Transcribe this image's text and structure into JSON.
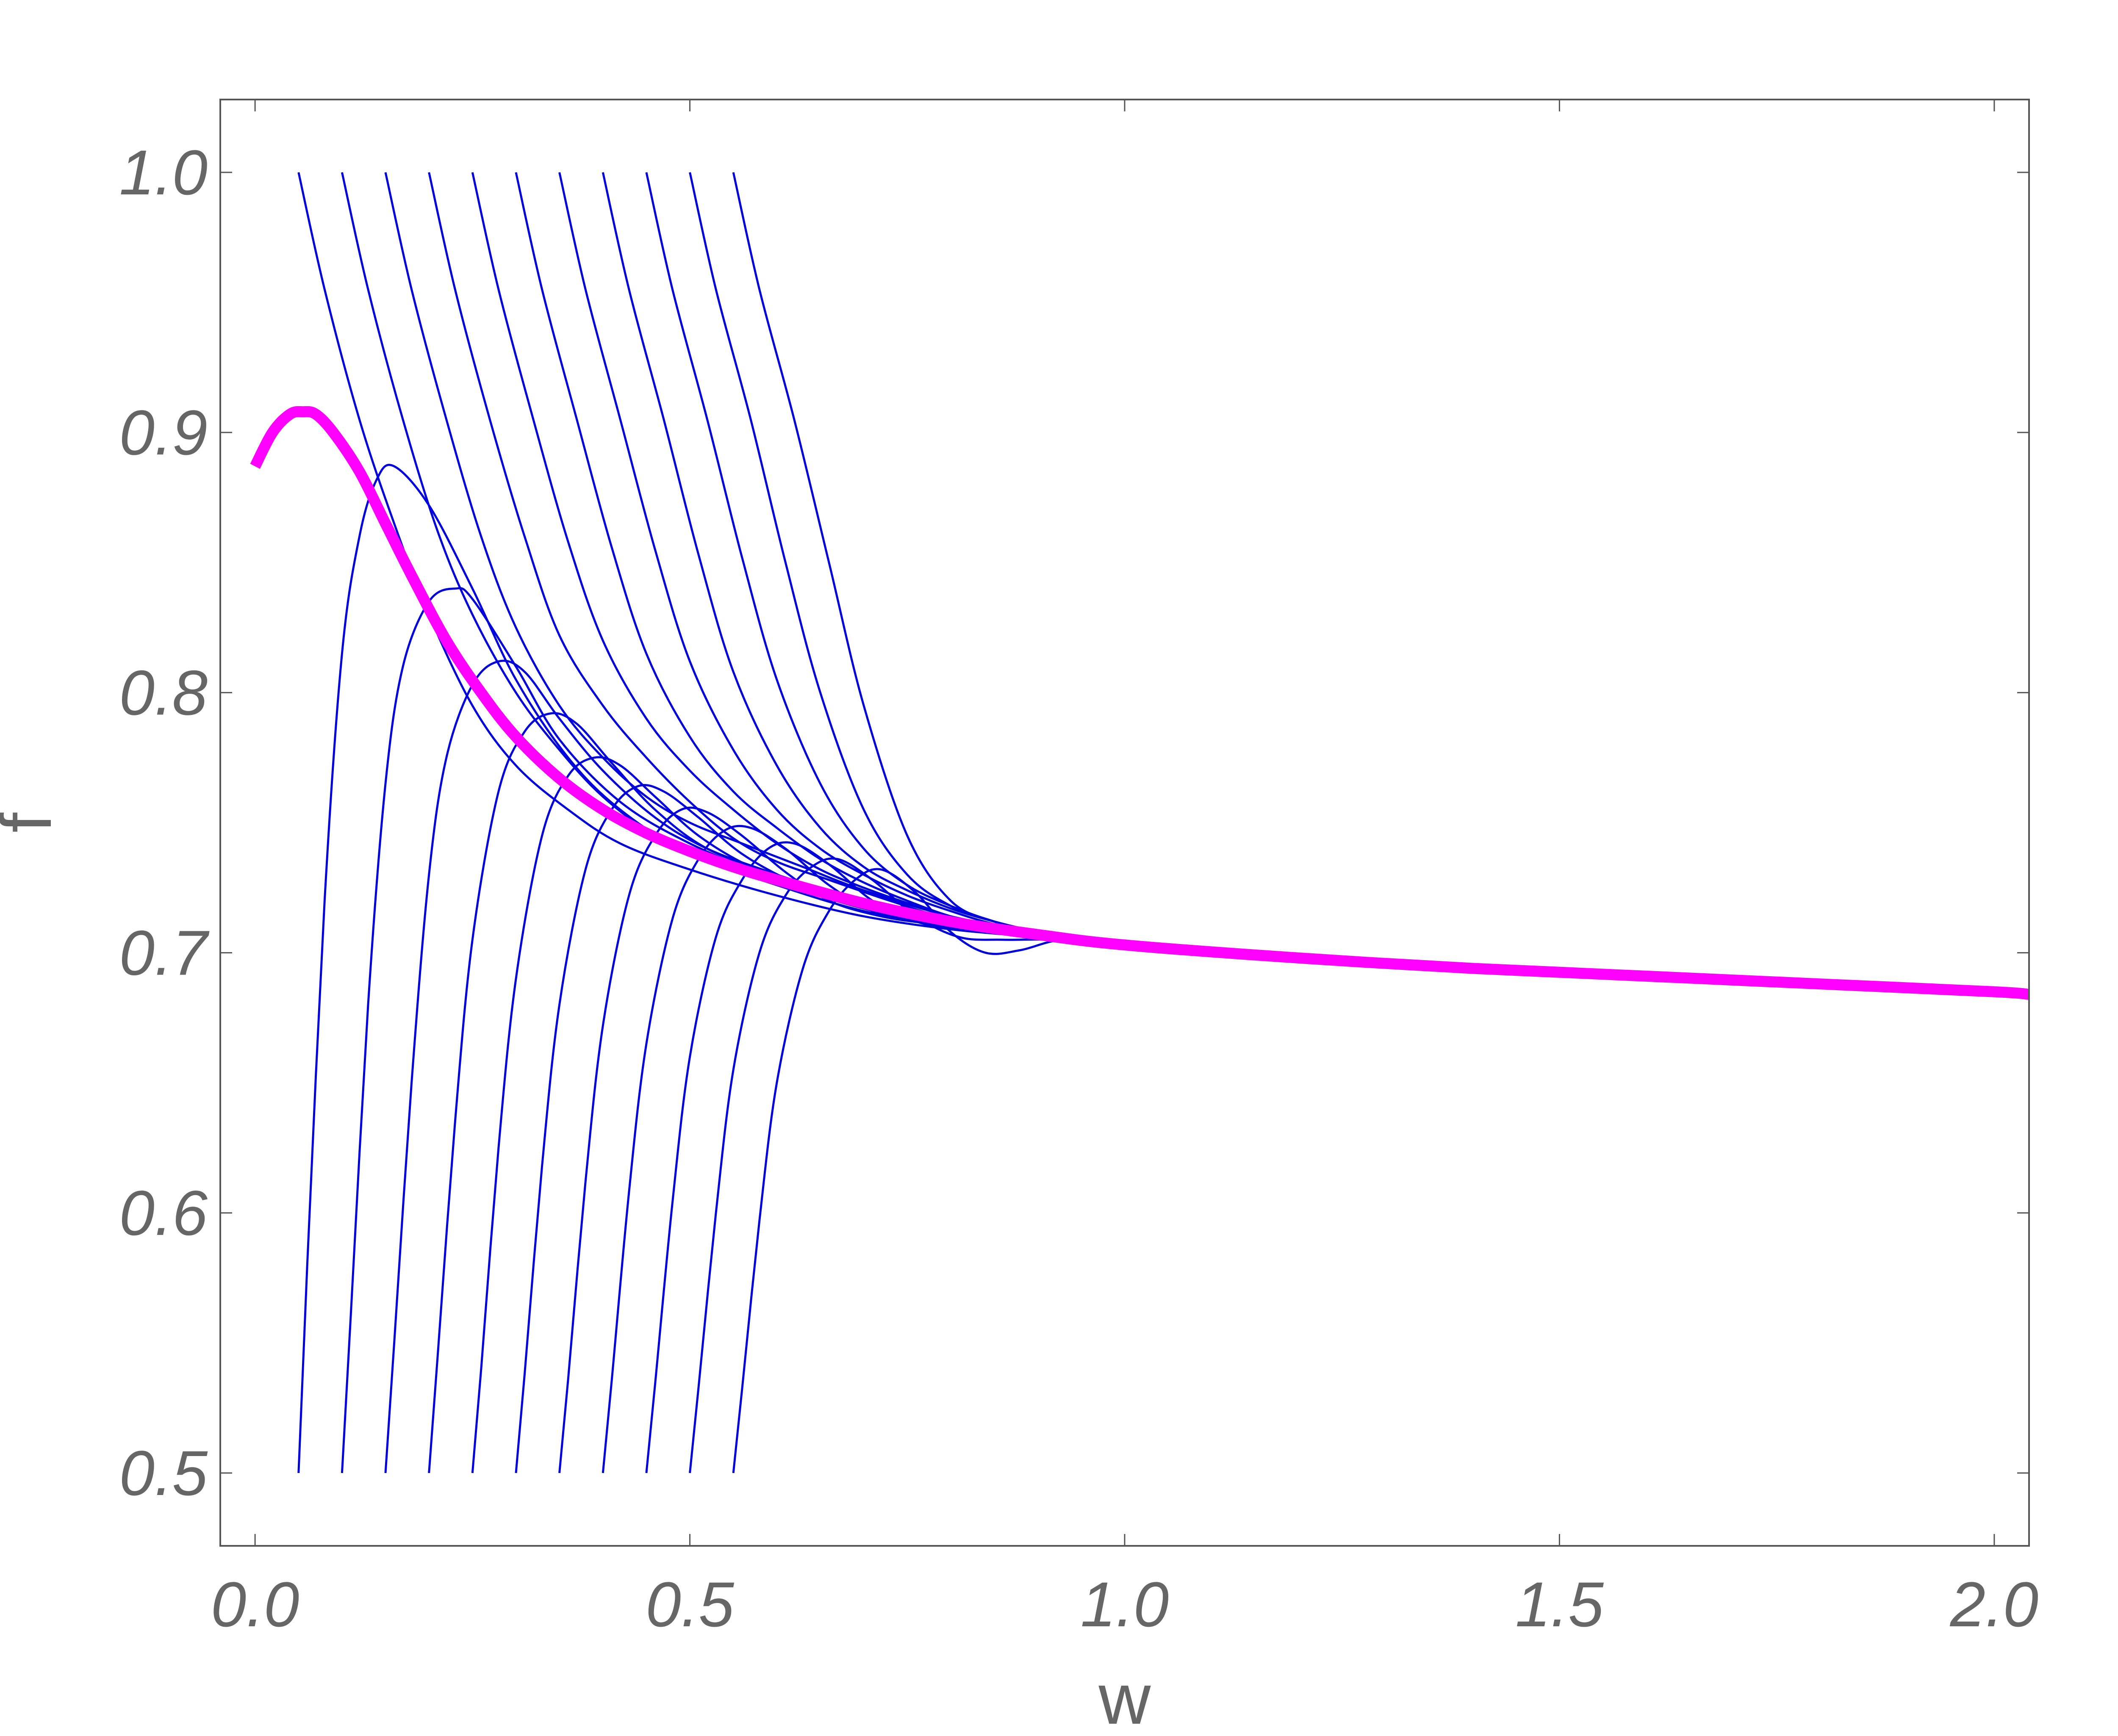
{
  "chart_data": {
    "type": "line",
    "title": "",
    "xlabel": "w",
    "ylabel": "f",
    "xlim": [
      -0.04,
      2.04
    ],
    "ylim": [
      0.472,
      1.028
    ],
    "grid": false,
    "legend": "none",
    "x_ticks": [
      "0.0",
      "0.5",
      "1.0",
      "1.5",
      "2.0"
    ],
    "x_tick_values": [
      0,
      0.5,
      1.0,
      1.5,
      2.0
    ],
    "y_ticks": [
      "0.5",
      "0.6",
      "0.7",
      "0.8",
      "0.9",
      "1.0"
    ],
    "y_tick_values": [
      0.5,
      0.6,
      0.7,
      0.8,
      0.9,
      1.0
    ],
    "colors": {
      "thin_curves": "#0000dd",
      "thick_curve": "#ff00ff",
      "frame": "#555555",
      "text": "#666666"
    },
    "series": [
      {
        "x": [
          0.05,
          0.08,
          0.12,
          0.16,
          0.2,
          0.25,
          0.3,
          0.36,
          0.42,
          0.5,
          0.6,
          0.7,
          0.8,
          0.9,
          1.0
        ],
        "y": [
          1.0,
          0.955,
          0.905,
          0.865,
          0.83,
          0.795,
          0.772,
          0.755,
          0.742,
          0.732,
          0.722,
          0.714,
          0.709,
          0.706,
          0.703
        ]
      },
      {
        "x": [
          0.1,
          0.13,
          0.17,
          0.21,
          0.25,
          0.3,
          0.35,
          0.4,
          0.46,
          0.52,
          0.6,
          0.7,
          0.8,
          0.9,
          1.0
        ],
        "y": [
          1.0,
          0.955,
          0.905,
          0.862,
          0.83,
          0.8,
          0.778,
          0.76,
          0.745,
          0.736,
          0.727,
          0.717,
          0.71,
          0.706,
          0.703
        ]
      },
      {
        "x": [
          0.15,
          0.18,
          0.22,
          0.26,
          0.3,
          0.35,
          0.4,
          0.45,
          0.5,
          0.56,
          0.63,
          0.7,
          0.8,
          0.9,
          1.0
        ],
        "y": [
          1.0,
          0.955,
          0.905,
          0.86,
          0.825,
          0.795,
          0.775,
          0.76,
          0.75,
          0.742,
          0.733,
          0.724,
          0.714,
          0.708,
          0.703
        ]
      },
      {
        "x": [
          0.2,
          0.23,
          0.27,
          0.31,
          0.35,
          0.4,
          0.45,
          0.5,
          0.55,
          0.6,
          0.66,
          0.73,
          0.8,
          0.9,
          1.0
        ],
        "y": [
          1.0,
          0.955,
          0.905,
          0.86,
          0.822,
          0.795,
          0.775,
          0.758,
          0.744,
          0.735,
          0.728,
          0.72,
          0.713,
          0.707,
          0.703
        ]
      },
      {
        "x": [
          0.25,
          0.28,
          0.32,
          0.36,
          0.4,
          0.45,
          0.5,
          0.55,
          0.6,
          0.65,
          0.7,
          0.76,
          0.82,
          0.9,
          1.0
        ],
        "y": [
          1.0,
          0.955,
          0.905,
          0.858,
          0.82,
          0.79,
          0.77,
          0.755,
          0.742,
          0.732,
          0.725,
          0.718,
          0.712,
          0.707,
          0.703
        ]
      },
      {
        "x": [
          0.3,
          0.33,
          0.37,
          0.41,
          0.45,
          0.5,
          0.55,
          0.6,
          0.65,
          0.7,
          0.75,
          0.8,
          0.86,
          0.93,
          1.0
        ],
        "y": [
          1.0,
          0.955,
          0.905,
          0.856,
          0.815,
          0.783,
          0.762,
          0.748,
          0.736,
          0.727,
          0.72,
          0.714,
          0.709,
          0.706,
          0.703
        ]
      },
      {
        "x": [
          0.35,
          0.38,
          0.42,
          0.46,
          0.5,
          0.55,
          0.6,
          0.65,
          0.7,
          0.75,
          0.8,
          0.85,
          0.9,
          0.95,
          1.0
        ],
        "y": [
          1.0,
          0.955,
          0.905,
          0.855,
          0.812,
          0.778,
          0.755,
          0.74,
          0.73,
          0.722,
          0.716,
          0.711,
          0.708,
          0.705,
          0.703
        ]
      },
      {
        "x": [
          0.4,
          0.43,
          0.47,
          0.51,
          0.55,
          0.6,
          0.65,
          0.7,
          0.75,
          0.8,
          0.85,
          0.9,
          0.95,
          1.0
        ],
        "y": [
          1.0,
          0.955,
          0.905,
          0.853,
          0.808,
          0.772,
          0.748,
          0.733,
          0.724,
          0.717,
          0.712,
          0.708,
          0.705,
          0.703
        ]
      },
      {
        "x": [
          0.45,
          0.48,
          0.52,
          0.56,
          0.6,
          0.65,
          0.7,
          0.75,
          0.8,
          0.85,
          0.9,
          0.95,
          1.0
        ],
        "y": [
          1.0,
          0.955,
          0.905,
          0.852,
          0.805,
          0.765,
          0.74,
          0.726,
          0.718,
          0.712,
          0.708,
          0.705,
          0.703
        ]
      },
      {
        "x": [
          0.5,
          0.53,
          0.57,
          0.61,
          0.65,
          0.7,
          0.75,
          0.8,
          0.85,
          0.9,
          0.95,
          1.0
        ],
        "y": [
          1.0,
          0.955,
          0.905,
          0.85,
          0.8,
          0.755,
          0.73,
          0.718,
          0.712,
          0.708,
          0.705,
          0.703
        ]
      },
      {
        "x": [
          0.55,
          0.58,
          0.62,
          0.66,
          0.7,
          0.75,
          0.8,
          0.85,
          0.9,
          0.95,
          1.0
        ],
        "y": [
          1.0,
          0.955,
          0.905,
          0.85,
          0.795,
          0.745,
          0.72,
          0.712,
          0.708,
          0.705,
          0.703
        ]
      },
      {
        "x": [
          0.05,
          0.06,
          0.08,
          0.1,
          0.12,
          0.14,
          0.16,
          0.2,
          0.25,
          0.3,
          0.36,
          0.42,
          0.5,
          0.6,
          0.7,
          0.8,
          0.9,
          1.0
        ],
        "y": [
          0.5,
          0.58,
          0.72,
          0.815,
          0.86,
          0.882,
          0.887,
          0.872,
          0.84,
          0.805,
          0.775,
          0.755,
          0.738,
          0.726,
          0.716,
          0.71,
          0.706,
          0.703
        ]
      },
      {
        "x": [
          0.1,
          0.11,
          0.13,
          0.15,
          0.17,
          0.2,
          0.23,
          0.25,
          0.3,
          0.35,
          0.42,
          0.5,
          0.6,
          0.7,
          0.8,
          0.9,
          1.0
        ],
        "y": [
          0.5,
          0.56,
          0.68,
          0.765,
          0.81,
          0.835,
          0.84,
          0.836,
          0.81,
          0.782,
          0.758,
          0.742,
          0.728,
          0.717,
          0.71,
          0.706,
          0.703
        ]
      },
      {
        "x": [
          0.15,
          0.16,
          0.18,
          0.2,
          0.22,
          0.25,
          0.28,
          0.31,
          0.35,
          0.4,
          0.46,
          0.52,
          0.6,
          0.7,
          0.8,
          0.9,
          1.0
        ],
        "y": [
          0.5,
          0.55,
          0.65,
          0.73,
          0.775,
          0.803,
          0.812,
          0.808,
          0.79,
          0.77,
          0.752,
          0.74,
          0.73,
          0.718,
          0.71,
          0.706,
          0.703
        ]
      },
      {
        "x": [
          0.2,
          0.21,
          0.23,
          0.25,
          0.28,
          0.31,
          0.34,
          0.37,
          0.41,
          0.46,
          0.52,
          0.6,
          0.7,
          0.8,
          0.9,
          1.0
        ],
        "y": [
          0.5,
          0.545,
          0.635,
          0.705,
          0.762,
          0.785,
          0.792,
          0.788,
          0.773,
          0.755,
          0.74,
          0.73,
          0.72,
          0.711,
          0.706,
          0.703
        ]
      },
      {
        "x": [
          0.25,
          0.26,
          0.28,
          0.3,
          0.33,
          0.36,
          0.39,
          0.42,
          0.46,
          0.51,
          0.57,
          0.64,
          0.72,
          0.8,
          0.9,
          1.0
        ],
        "y": [
          0.5,
          0.54,
          0.625,
          0.69,
          0.745,
          0.768,
          0.775,
          0.772,
          0.76,
          0.745,
          0.733,
          0.724,
          0.716,
          0.71,
          0.706,
          0.703
        ]
      },
      {
        "x": [
          0.3,
          0.31,
          0.33,
          0.35,
          0.38,
          0.41,
          0.44,
          0.47,
          0.51,
          0.56,
          0.62,
          0.68,
          0.75,
          0.82,
          0.9,
          1.0
        ],
        "y": [
          0.5,
          0.538,
          0.618,
          0.68,
          0.732,
          0.755,
          0.764,
          0.762,
          0.752,
          0.738,
          0.727,
          0.72,
          0.714,
          0.709,
          0.706,
          0.703
        ]
      },
      {
        "x": [
          0.35,
          0.36,
          0.38,
          0.4,
          0.43,
          0.46,
          0.49,
          0.52,
          0.56,
          0.61,
          0.66,
          0.72,
          0.78,
          0.85,
          0.92,
          1.0
        ],
        "y": [
          0.5,
          0.536,
          0.612,
          0.672,
          0.722,
          0.745,
          0.755,
          0.754,
          0.745,
          0.731,
          0.72,
          0.714,
          0.711,
          0.708,
          0.705,
          0.703
        ]
      },
      {
        "x": [
          0.4,
          0.41,
          0.43,
          0.45,
          0.48,
          0.51,
          0.54,
          0.57,
          0.61,
          0.66,
          0.71,
          0.76,
          0.82,
          0.88,
          0.94,
          1.0
        ],
        "y": [
          0.5,
          0.535,
          0.608,
          0.665,
          0.713,
          0.736,
          0.747,
          0.748,
          0.74,
          0.726,
          0.716,
          0.712,
          0.709,
          0.707,
          0.705,
          0.703
        ]
      },
      {
        "x": [
          0.45,
          0.46,
          0.48,
          0.5,
          0.53,
          0.56,
          0.59,
          0.62,
          0.66,
          0.71,
          0.76,
          0.81,
          0.86,
          0.92,
          1.0
        ],
        "y": [
          0.5,
          0.534,
          0.604,
          0.66,
          0.706,
          0.728,
          0.74,
          0.742,
          0.734,
          0.72,
          0.712,
          0.709,
          0.708,
          0.706,
          0.703
        ]
      },
      {
        "x": [
          0.5,
          0.51,
          0.53,
          0.55,
          0.58,
          0.61,
          0.64,
          0.67,
          0.71,
          0.76,
          0.81,
          0.86,
          0.92,
          1.0
        ],
        "y": [
          0.5,
          0.533,
          0.6,
          0.655,
          0.7,
          0.722,
          0.733,
          0.736,
          0.728,
          0.714,
          0.706,
          0.705,
          0.705,
          0.703
        ]
      },
      {
        "x": [
          0.55,
          0.56,
          0.58,
          0.6,
          0.63,
          0.66,
          0.69,
          0.72,
          0.76,
          0.8,
          0.84,
          0.88,
          0.93,
          1.0
        ],
        "y": [
          0.5,
          0.532,
          0.597,
          0.65,
          0.694,
          0.716,
          0.728,
          0.732,
          0.723,
          0.708,
          0.7,
          0.701,
          0.705,
          0.703
        ]
      },
      {
        "x": [
          0.0,
          0.02,
          0.04,
          0.055,
          0.07,
          0.09,
          0.12,
          0.15,
          0.18,
          0.22,
          0.26,
          0.3,
          0.35,
          0.4,
          0.45,
          0.5,
          0.55,
          0.6,
          0.7,
          0.8,
          0.9,
          1.0,
          1.2,
          1.4,
          1.6,
          1.8,
          2.0,
          2.04
        ],
        "y": [
          0.887,
          0.9,
          0.907,
          0.908,
          0.907,
          0.9,
          0.885,
          0.865,
          0.845,
          0.82,
          0.8,
          0.783,
          0.767,
          0.755,
          0.746,
          0.739,
          0.733,
          0.728,
          0.719,
          0.712,
          0.707,
          0.703,
          0.698,
          0.694,
          0.691,
          0.688,
          0.685,
          0.684
        ]
      }
    ]
  }
}
